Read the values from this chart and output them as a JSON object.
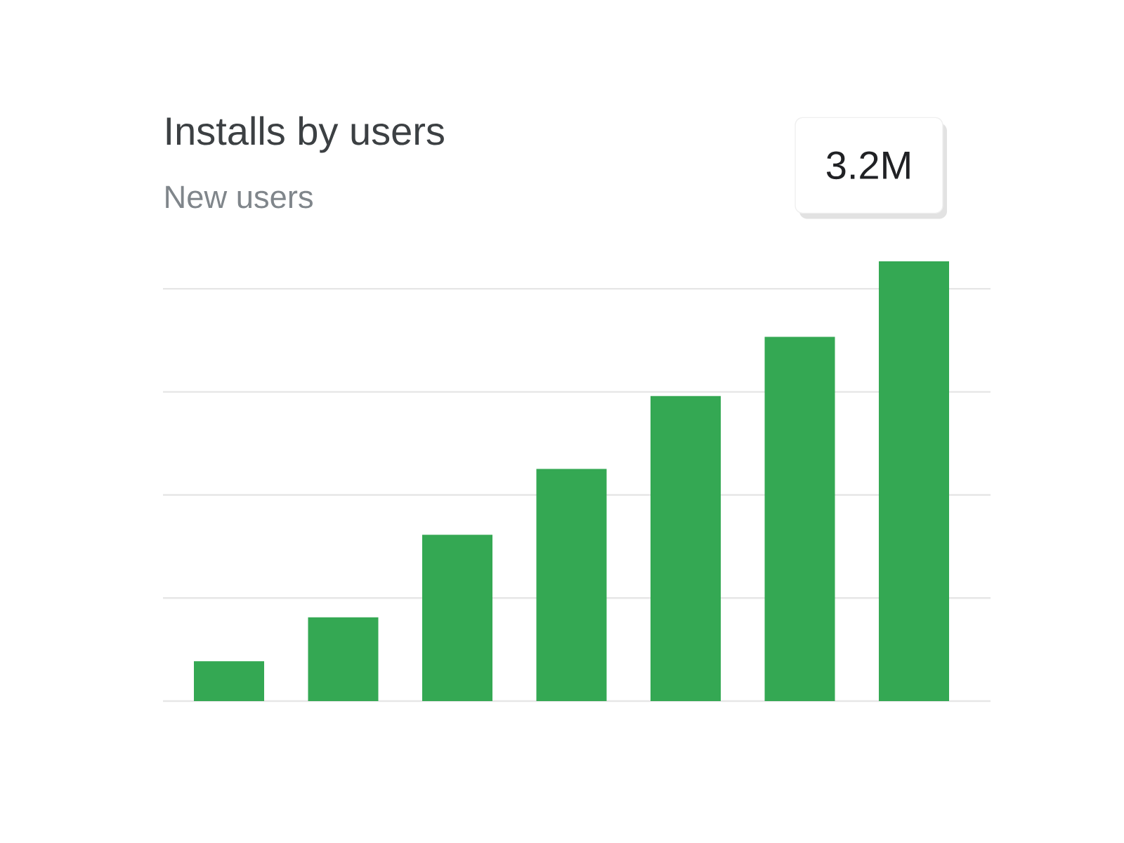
{
  "chart_data": {
    "type": "bar",
    "title": "Installs by users",
    "subtitle": "New users",
    "categories": [
      null,
      null,
      null,
      null,
      null,
      null,
      null
    ],
    "values": [
      0.29,
      0.61,
      1.21,
      1.69,
      2.22,
      2.65,
      3.2
    ],
    "value_labels": [
      null,
      null,
      null,
      null,
      null,
      null,
      "3.2M"
    ],
    "color": "#34a853",
    "grid": "y",
    "ylim": [
      0,
      3.2
    ],
    "yticks": [
      {
        "value": 0,
        "label": null
      },
      {
        "value": 0.75,
        "label": null
      },
      {
        "value": 1.5,
        "label": null
      },
      {
        "value": 2.25,
        "label": null
      },
      {
        "value": 3,
        "label": null
      }
    ]
  }
}
